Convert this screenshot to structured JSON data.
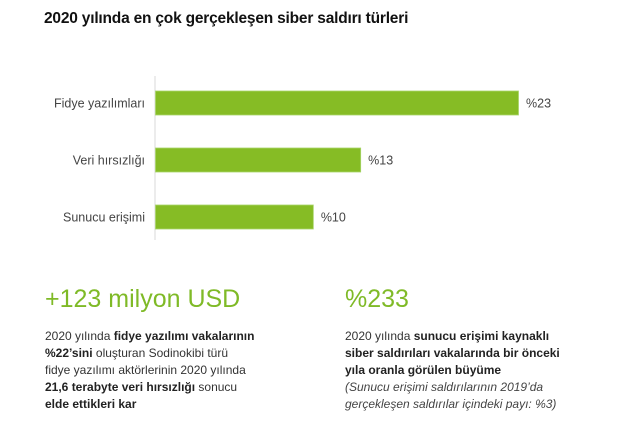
{
  "chart_data": {
    "type": "bar",
    "orientation": "horizontal",
    "title": "2020 yılında en çok gerçekleşen siber saldırı türleri",
    "categories": [
      "Fidye yazılımları",
      "Veri hırsızlığı",
      "Sunucu erişimi"
    ],
    "values": [
      23,
      13,
      10
    ],
    "value_labels": [
      "%23",
      "%13",
      "%10"
    ],
    "xlabel": "",
    "ylabel": "",
    "xlim": [
      0,
      23
    ],
    "grid": false,
    "bar_color": "#86bc25"
  },
  "stats": [
    {
      "headline": "+123 milyon USD",
      "lines": [
        [
          {
            "t": "2020 yılında ",
            "s": "n"
          },
          {
            "t": "fidye yazılımı vakalarının",
            "s": "b"
          }
        ],
        [
          {
            "t": "%22’sini",
            "s": "b"
          },
          {
            "t": " oluşturan Sodinokibi türü",
            "s": "n"
          }
        ],
        [
          {
            "t": "fidye yazılımı aktörlerinin 2020 yılında",
            "s": "n"
          }
        ],
        [
          {
            "t": "21,6 terabyte veri hırsızlığı",
            "s": "b"
          },
          {
            "t": " sonucu",
            "s": "n"
          }
        ],
        [
          {
            "t": "elde ettikleri kar",
            "s": "b"
          }
        ]
      ]
    },
    {
      "headline": "%233",
      "lines": [
        [
          {
            "t": "2020 yılında ",
            "s": "n"
          },
          {
            "t": "sunucu erişimi kaynaklı",
            "s": "b"
          }
        ],
        [
          {
            "t": "siber saldırıları vakalarında bir önceki",
            "s": "b"
          }
        ],
        [
          {
            "t": "yıla oranla görülen büyüme",
            "s": "b"
          }
        ],
        [
          {
            "t": "(Sunucu erişimi saldırılarının 2019’da",
            "s": "i"
          }
        ],
        [
          {
            "t": "gerçekleşen saldırılar içindeki payı: %3)",
            "s": "i"
          }
        ]
      ]
    }
  ],
  "colors": {
    "accent": "#7fba27"
  }
}
